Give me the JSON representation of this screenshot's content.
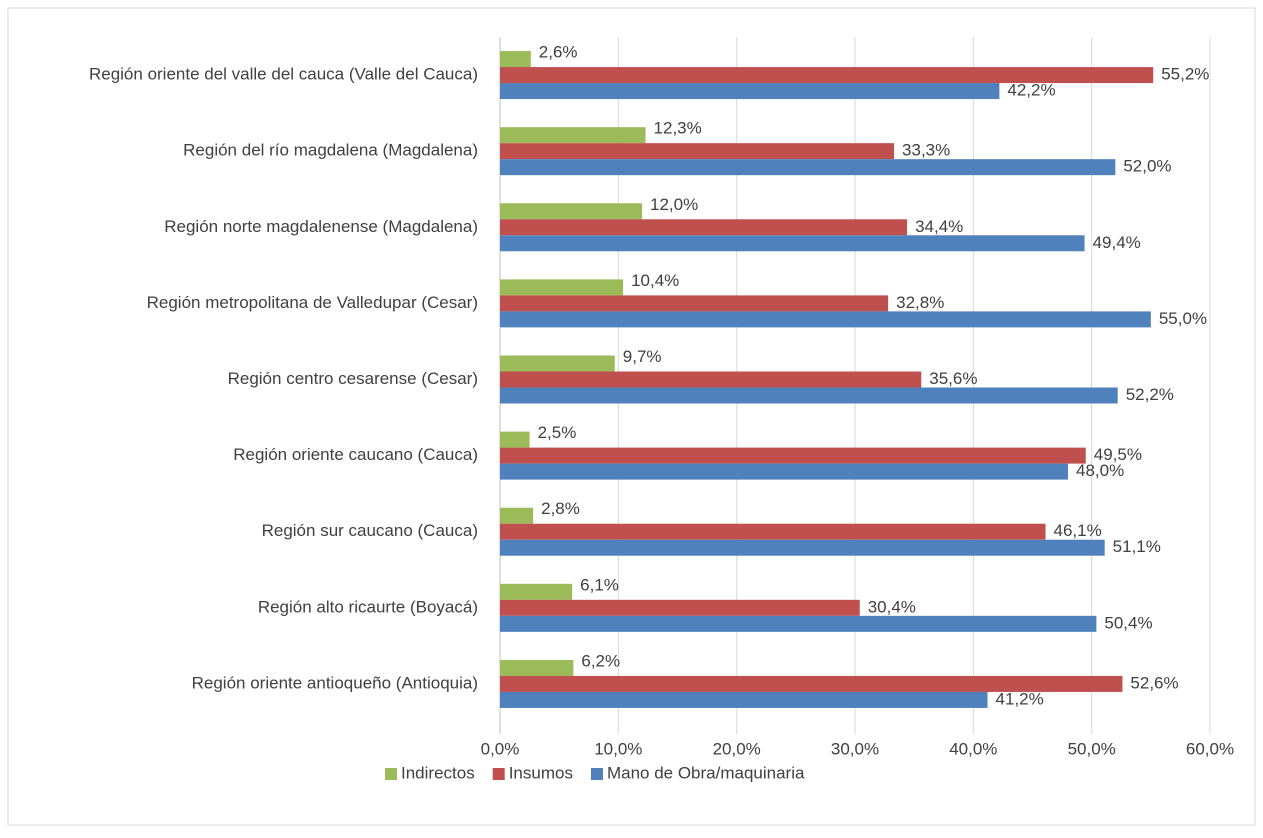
{
  "chart_data": {
    "type": "barh",
    "categories": [
      "Región oriente del valle del cauca (Valle del Cauca)",
      "Región del río magdalena (Magdalena)",
      "Región norte magdalenense (Magdalena)",
      "Región metropolitana de Valledupar (Cesar)",
      "Región centro cesarense (Cesar)",
      "Región oriente caucano (Cauca)",
      "Región sur caucano (Cauca)",
      "Región alto ricaurte (Boyacá)",
      "Región oriente antioqueño (Antioquia)"
    ],
    "series": [
      {
        "name": "Indirectos",
        "color": "#9bbb59",
        "values": [
          2.6,
          12.3,
          12.0,
          10.4,
          9.7,
          2.5,
          2.8,
          6.1,
          6.2
        ],
        "value_labels": [
          "2,6%",
          "12,3%",
          "12,0%",
          "10,4%",
          "9,7%",
          "2,5%",
          "2,8%",
          "6,1%",
          "6,2%"
        ]
      },
      {
        "name": "Insumos",
        "color": "#c0504d",
        "values": [
          55.2,
          33.3,
          34.4,
          32.8,
          35.6,
          49.5,
          46.1,
          30.4,
          52.6
        ],
        "value_labels": [
          "55,2%",
          "33,3%",
          "34,4%",
          "32,8%",
          "35,6%",
          "49,5%",
          "46,1%",
          "30,4%",
          "52,6%"
        ]
      },
      {
        "name": "Mano de Obra/maquinaria",
        "color": "#4f81bd",
        "values": [
          42.2,
          52.0,
          49.4,
          55.0,
          52.2,
          48.0,
          51.1,
          50.4,
          41.2
        ],
        "value_labels": [
          "42,2%",
          "52,0%",
          "49,4%",
          "55,0%",
          "52,2%",
          "48,0%",
          "51,1%",
          "50,4%",
          "41,2%"
        ]
      }
    ],
    "xlim": [
      0,
      60
    ],
    "xticks": [
      {
        "value": 0,
        "label": "0,0%"
      },
      {
        "value": 10,
        "label": "10,0%"
      },
      {
        "value": 20,
        "label": "20,0%"
      },
      {
        "value": 30,
        "label": "30,0%"
      },
      {
        "value": 40,
        "label": "40,0%"
      },
      {
        "value": 50,
        "label": "50,0%"
      },
      {
        "value": 60,
        "label": "60,0%"
      }
    ],
    "grid": true,
    "legend": "bottom"
  }
}
